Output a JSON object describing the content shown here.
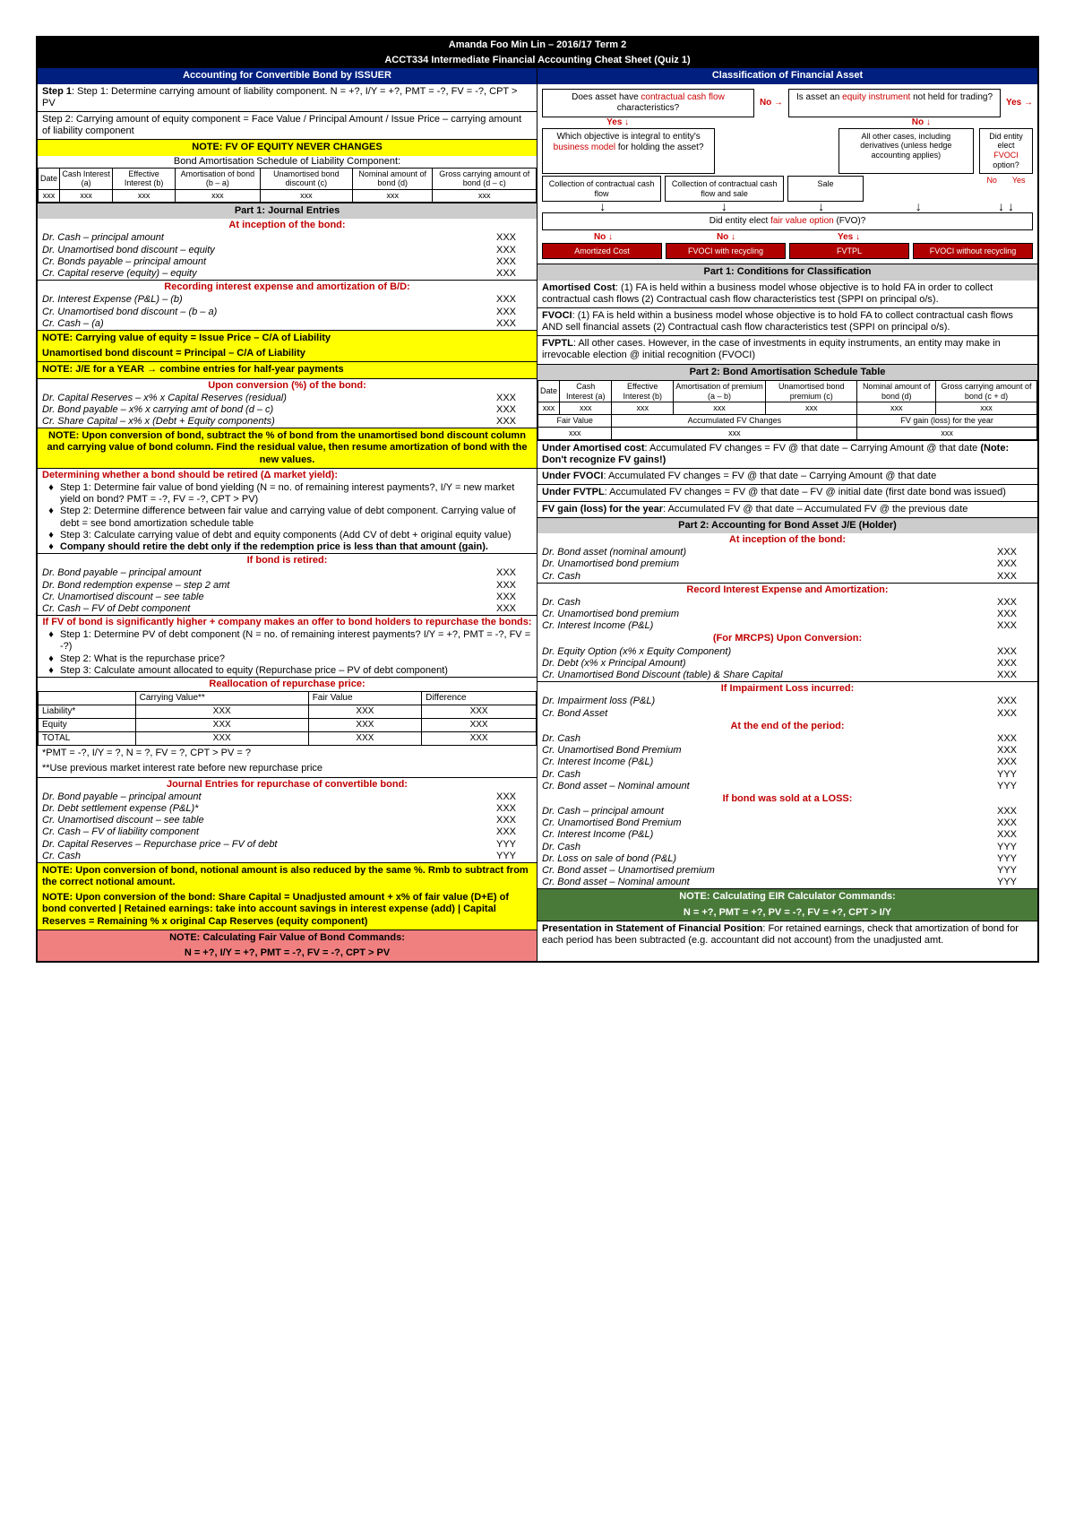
{
  "header": {
    "author": "Amanda Foo Min Lin – 2016/17 Term 2",
    "title": "ACCT334 Intermediate Financial Accounting Cheat Sheet (Quiz 1)"
  },
  "left": {
    "title": "Accounting for Convertible Bond by ISSUER",
    "step1": "Step 1: Determine carrying amount of liability component. N = +?, I/Y = +?, PMT = -?, FV = -?, CPT > PV",
    "step2": "Step 2: Carrying amount of equity component = Face Value / Principal Amount / Issue Price – carrying amount of liability component",
    "note_fv": "NOTE: FV OF EQUITY NEVER CHANGES",
    "sched_title": "Bond Amortisation Schedule of Liability Component:",
    "sched_cols": [
      "Date",
      "Cash Interest (a)",
      "Effective Interest (b)",
      "Amortisation of bond (b – a)",
      "Unamortised bond discount (c)",
      "Nominal amount of bond (d)",
      "Gross carrying amount of bond (d – c)"
    ],
    "part1_title": "Part 1: Journal Entries",
    "inception_title": "At inception of the bond:",
    "je_inception": [
      {
        "d": "Dr. Cash – principal amount",
        "a": "XXX"
      },
      {
        "d": "Dr. Unamortised bond discount – equity",
        "a": "XXX"
      },
      {
        "d": "   Cr. Bonds payable – principal amount",
        "a": "XXX"
      },
      {
        "d": "   Cr. Capital reserve (equity) – equity",
        "a": "XXX"
      }
    ],
    "recording_title": "Recording interest expense and amortization of B/D:",
    "je_recording": [
      {
        "d": "Dr. Interest Expense (P&L) – (b)",
        "a": "XXX"
      },
      {
        "d": "   Cr. Unamortised bond discount – (b – a)",
        "a": "XXX"
      },
      {
        "d": "   Cr. Cash – (a)",
        "a": "XXX"
      }
    ],
    "note_cv1": "NOTE: Carrying value of equity = Issue Price – C/A of Liability",
    "note_cv2": "Unamortised bond discount = Principal – C/A of Liability",
    "note_halfyear": "NOTE: J/E for a YEAR → combine entries for half-year payments",
    "upon_conv_title": "Upon conversion (%) of the bond:",
    "je_conv": [
      {
        "d": "Dr. Capital Reserves – x% x Capital Reserves (residual)",
        "a": "XXX"
      },
      {
        "d": "Dr. Bond payable – x% x carrying amt of bond (d – c)",
        "a": "XXX"
      },
      {
        "d": "   Cr. Share Capital – x% x (Debt + Equity components)",
        "a": "XXX"
      }
    ],
    "note_conv": "NOTE: Upon conversion of bond, subtract the % of bond from the unamortised bond discount column and carrying value of bond column. Find the residual value, then resume amortization of bond with the new values.",
    "retire_title": "Determining whether a bond should be retired (Δ market yield):",
    "retire_steps": [
      "Step 1: Determine fair value of bond yielding (N = no. of remaining interest payments?, I/Y = new market yield on bond? PMT = -?, FV = -?, CPT > PV)",
      "Step 2: Determine difference between fair value and carrying value of debt component. Carrying value of debt = see bond amortization schedule table",
      "Step 3: Calculate carrying value of debt and equity components (Add CV of debt + original equity value)",
      "Company should retire the debt only if the redemption price is less than that amount (gain)."
    ],
    "if_retired_title": "If bond is retired:",
    "je_retired": [
      {
        "d": "Dr. Bond payable – principal amount",
        "a": "XXX"
      },
      {
        "d": "Dr. Bond redemption expense – step 2 amt",
        "a": "XXX"
      },
      {
        "d": "   Cr. Unamortised discount – see table",
        "a": "XXX"
      },
      {
        "d": "   Cr. Cash – FV of Debt component",
        "a": "XXX"
      }
    ],
    "if_fv_title": "If FV of bond is significantly higher + company makes an offer to bond holders to repurchase the bonds:",
    "if_fv_steps": [
      "Step 1: Determine PV of debt component (N = no. of remaining interest payments? I/Y = +?, PMT = -?, FV = -?)",
      "Step 2: What is the repurchase price?",
      "Step 3: Calculate amount allocated to equity (Repurchase price – PV of debt component)"
    ],
    "realloc_title": "Reallocation of repurchase price:",
    "realloc_cols": [
      "",
      "Carrying Value**",
      "Fair Value",
      "Difference"
    ],
    "realloc_rows": [
      [
        "Liability*",
        "XXX",
        "XXX",
        "XXX"
      ],
      [
        "Equity",
        "XXX",
        "XXX",
        "XXX"
      ],
      [
        "TOTAL",
        "XXX",
        "XXX",
        "XXX"
      ]
    ],
    "realloc_note1": "*PMT = -?, I/Y = ?, N = ?, FV = ?, CPT > PV = ?",
    "realloc_note2": "**Use previous market interest rate before new repurchase price",
    "je_repurchase_title": "Journal Entries for repurchase of convertible bond:",
    "je_repurchase": [
      {
        "d": "Dr. Bond payable – principal amount",
        "a": "XXX"
      },
      {
        "d": "Dr. Debt settlement expense (P&L)*",
        "a": "XXX"
      },
      {
        "d": "   Cr. Unamortised discount – see table",
        "a": "XXX"
      },
      {
        "d": "   Cr. Cash – FV of liability component",
        "a": "XXX"
      },
      {
        "d": "Dr. Capital Reserves – Repurchase price – FV of debt",
        "a": "YYY"
      },
      {
        "d": "   Cr. Cash",
        "a": "YYY"
      }
    ],
    "note_notional": "NOTE: Upon conversion of bond, notional amount is also reduced by the same %. Rmb to subtract from the correct notional amount.",
    "note_share_cap": "NOTE: Upon conversion of the bond: Share Capital = Unadjusted amount + x% of fair value (D+E) of bond converted | Retained earnings: take into account savings in interest expense (add) | Capital Reserves = Remaining % x original Cap Reserves (equity component)",
    "calc_fv_title": "NOTE: Calculating Fair Value of Bond Commands:",
    "calc_fv": "N = +?, I/Y = +?, PMT = -?, FV = -?, CPT > PV"
  },
  "right": {
    "title": "Classification of Financial Asset",
    "flow": {
      "q1": "Does asset have contractual cash flow characteristics?",
      "q1_red": "contractual cash flow",
      "q2": "Is asset an equity instrument not held for trading?",
      "q3": "Which objective is integral to entity's business model for holding the asset?",
      "q3_red": "business model",
      "q4": "All other cases, including derivatives (unless hedge accounting applies)",
      "q5": "Did entity elect FVOCI option?",
      "q5_red": "FVOCI",
      "q6": "Did entity elect fair value option (FVO)?",
      "q6_red": "fair value option",
      "box1": "Collection of contractual cash flow",
      "box2": "Collection of contractual cash flow and sale",
      "box3": "Sale",
      "end1": "Amortized Cost",
      "end2": "FVOCI with recycling",
      "end3": "FVTPL",
      "end4": "FVOCI without recycling"
    },
    "part1_title": "Part 1: Conditions for Classification",
    "amcost": "Amortised Cost: (1) FA is held within a business model whose objective is to hold FA in order to collect contractual cash flows (2) Contractual cash flow characteristics test (SPPI on principal o/s).",
    "fvoci": "FVOCI: (1) FA is held within a business model whose objective is to hold FA to collect contractual cash flows AND sell financial assets (2) Contractual cash flow characteristics test (SPPI on principal o/s).",
    "fvtpl": "FVPTL: All other cases. However, in the case of investments in equity instruments, an entity may make in irrevocable election @ initial recognition (FVOCI)",
    "part2_title": "Part 2: Bond Amortisation Schedule Table",
    "sched2_cols": [
      "Date",
      "Cash Interest (a)",
      "Effective Interest (b)",
      "Amortisation of premium (a – b)",
      "Unamortised bond premium (c)",
      "Nominal amount of bond (d)",
      "Gross carrying amount of bond (c + d)"
    ],
    "sched2_row2": [
      "Fair Value",
      "Accumulated FV Changes",
      "FV gain (loss) for the year"
    ],
    "under_am": "Under Amortised cost: Accumulated FV changes = FV @ that date – Carrying Amount @ that date (Note: Don't recognize FV gains!)",
    "under_fvoci": "Under FVOCI: Accumulated FV changes = FV @ that date – Carrying Amount @ that date",
    "under_fvtpl": "Under FVTPL: Accumulated FV changes = FV @ that date – FV @ initial date (first date bond was issued)",
    "fv_gain": "FV gain (loss) for the year: Accumulated FV @ that date – Accumulated FV @ the previous date",
    "part2b_title": "Part 2: Accounting for Bond Asset J/E (Holder)",
    "inception_title": "At inception of the bond:",
    "je_inception": [
      {
        "d": "Dr. Bond asset (nominal amount)",
        "a": "XXX"
      },
      {
        "d": "Dr. Unamortised bond premium",
        "a": "XXX"
      },
      {
        "d": "   Cr. Cash",
        "a": "XXX"
      }
    ],
    "record_title": "Record Interest Expense and Amortization:",
    "je_record": [
      {
        "d": "Dr. Cash",
        "a": "XXX"
      },
      {
        "d": "   Cr. Unamortised bond premium",
        "a": "XXX"
      },
      {
        "d": "   Cr. Interest Income (P&L)",
        "a": "XXX"
      }
    ],
    "mrcps_title": "(For MRCPS) Upon Conversion:",
    "je_mrcps": [
      {
        "d": "Dr. Equity Option (x% x Equity Component)",
        "a": "XXX"
      },
      {
        "d": "Dr. Debt (x% x Principal Amount)",
        "a": "XXX"
      },
      {
        "d": "   Cr. Unamortised Bond Discount (table) & Share Capital",
        "a": "XXX"
      }
    ],
    "impair_title": "If Impairment Loss incurred:",
    "je_impair": [
      {
        "d": "Dr. Impairment loss (P&L)",
        "a": "XXX"
      },
      {
        "d": "   Cr. Bond Asset",
        "a": "XXX"
      }
    ],
    "eop_title": "At the end of the period:",
    "je_eop": [
      {
        "d": "Dr. Cash",
        "a": "XXX"
      },
      {
        "d": "   Cr. Unamortised Bond Premium",
        "a": "XXX"
      },
      {
        "d": "   Cr. Interest Income (P&L)",
        "a": "XXX"
      },
      {
        "d": "Dr. Cash",
        "a": "YYY"
      },
      {
        "d": "   Cr. Bond asset – Nominal amount",
        "a": "YYY"
      }
    ],
    "loss_title": "If bond was sold at a LOSS:",
    "je_loss": [
      {
        "d": "Dr. Cash – principal amount",
        "a": "XXX"
      },
      {
        "d": "   Cr. Unamortised Bond Premium",
        "a": "XXX"
      },
      {
        "d": "   Cr. Interest Income (P&L)",
        "a": "XXX"
      },
      {
        "d": "Dr. Cash",
        "a": "YYY"
      },
      {
        "d": "Dr. Loss on sale of bond (P&L)",
        "a": "YYY"
      },
      {
        "d": "   Cr. Bond asset – Unamortised premium",
        "a": "YYY"
      },
      {
        "d": "   Cr. Bond asset – Nominal amount",
        "a": "YYY"
      }
    ],
    "eir_title": "NOTE: Calculating EIR Calculator Commands:",
    "eir": "N = +?, PMT = +?, PV = -?, FV = +?, CPT > I/Y",
    "pres": "Presentation in Statement of Financial Position: For retained earnings, check that amortization of bond for each period has been subtracted (e.g. accountant did not account) from the unadjusted amt."
  }
}
